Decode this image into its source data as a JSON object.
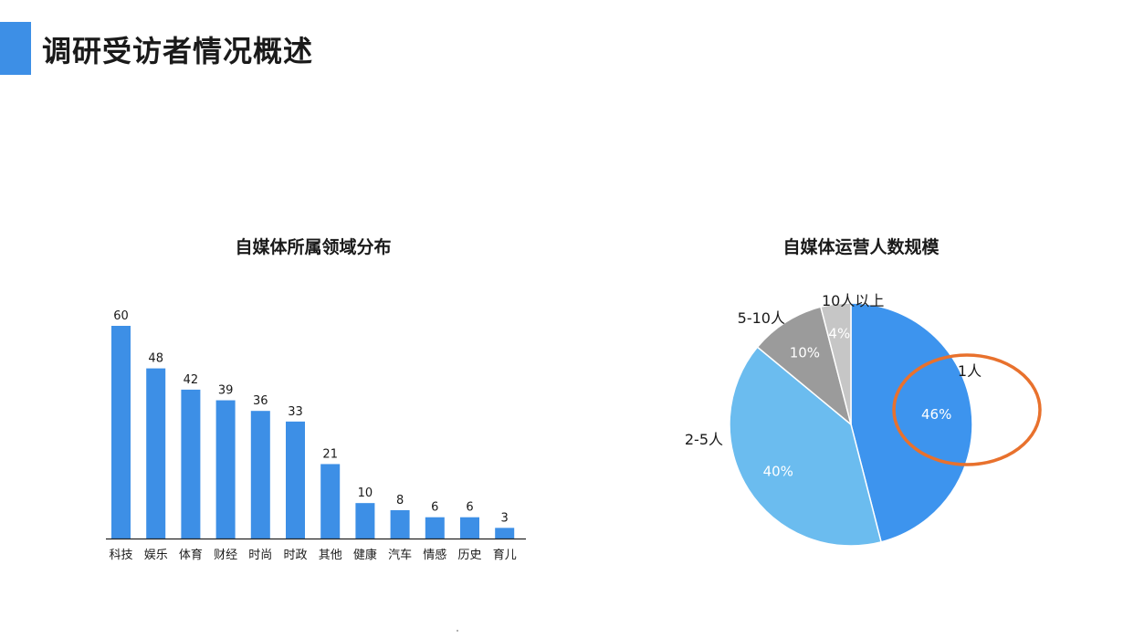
{
  "header": {
    "title": "调研受访者情况概述"
  },
  "colors": {
    "accent": "#3d8fe6",
    "bar": "#3d8fe6",
    "pie": [
      "#3d94ee",
      "#6bbcef",
      "#9b9b9b",
      "#c6c6c6"
    ],
    "highlight_ring": "#e8712d"
  },
  "chart_data": [
    {
      "type": "bar",
      "title": "自媒体所属领域分布",
      "categories": [
        "科技",
        "娱乐",
        "体育",
        "财经",
        "时尚",
        "时政",
        "其他",
        "健康",
        "汽车",
        "情感",
        "历史",
        "育儿"
      ],
      "values": [
        60,
        48,
        42,
        39,
        36,
        33,
        21,
        10,
        8,
        6,
        6,
        3
      ],
      "ylim": [
        0,
        60
      ],
      "grid": false,
      "legend": "none"
    },
    {
      "type": "pie",
      "title": "自媒体运营人数规模",
      "slices": [
        {
          "label": "1人",
          "value": 46,
          "display": "46%",
          "highlighted": true
        },
        {
          "label": "2-5人",
          "value": 40,
          "display": "40%"
        },
        {
          "label": "5-10人",
          "value": 10,
          "display": "10%"
        },
        {
          "label": "10人以上",
          "value": 4,
          "display": "4%"
        }
      ],
      "legend": "none"
    }
  ]
}
